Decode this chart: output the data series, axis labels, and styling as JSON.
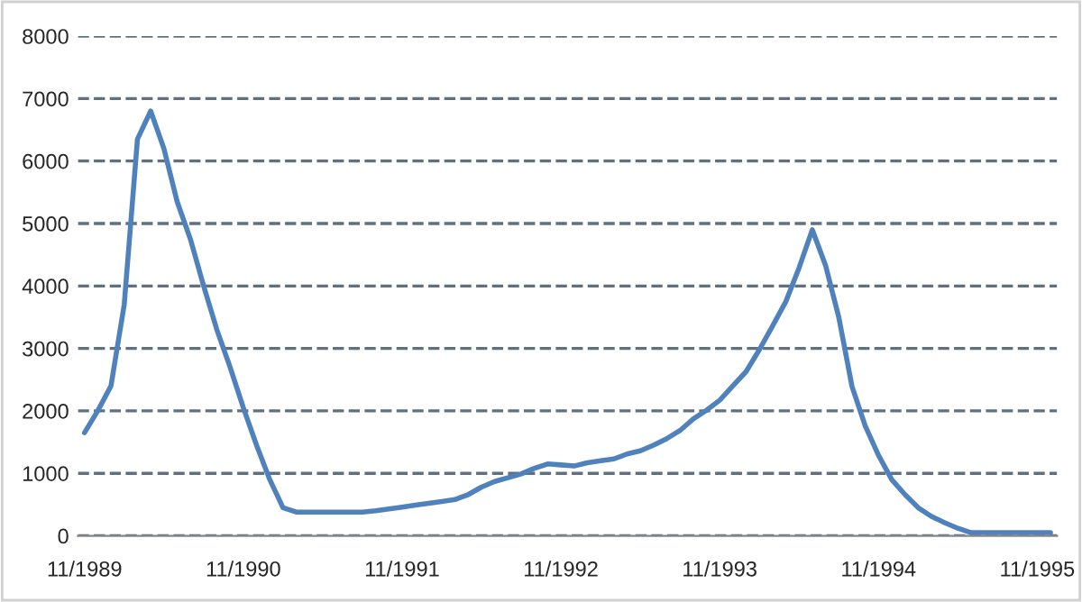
{
  "chart_data": {
    "type": "line",
    "categories": [
      "11/1989",
      null,
      null,
      null,
      null,
      null,
      null,
      null,
      null,
      null,
      null,
      null,
      "11/1990",
      null,
      null,
      null,
      null,
      null,
      null,
      null,
      null,
      null,
      null,
      null,
      "11/1991",
      null,
      null,
      null,
      null,
      null,
      null,
      null,
      null,
      null,
      null,
      null,
      "11/1992",
      null,
      null,
      null,
      null,
      null,
      null,
      null,
      null,
      null,
      null,
      null,
      "11/1993",
      null,
      null,
      null,
      null,
      null,
      null,
      null,
      null,
      null,
      null,
      null,
      "11/1994",
      null,
      null,
      null,
      null,
      null,
      null,
      null,
      null,
      null,
      null,
      null,
      "11/1995",
      null
    ],
    "series": [
      {
        "color": "#4f81bd",
        "values": [
          1650,
          2000,
          2400,
          3700,
          6350,
          6800,
          6200,
          5350,
          4750,
          4000,
          3300,
          2700,
          2050,
          1450,
          900,
          450,
          380,
          380,
          380,
          380,
          380,
          380,
          400,
          430,
          460,
          490,
          520,
          550,
          580,
          660,
          780,
          870,
          930,
          990,
          1080,
          1150,
          1135,
          1117,
          1170,
          1200,
          1230,
          1310,
          1360,
          1450,
          1555,
          1685,
          1870,
          2010,
          2170,
          2400,
          2630,
          2980,
          3360,
          3750,
          4290,
          4900,
          4330,
          3500,
          2390,
          1760,
          1290,
          900,
          660,
          450,
          310,
          210,
          120,
          50,
          50,
          50,
          50,
          50,
          50,
          50
        ]
      }
    ],
    "ylim": [
      0,
      8000
    ],
    "yticks": [
      0,
      1000,
      2000,
      3000,
      4000,
      5000,
      6000,
      7000,
      8000
    ],
    "grid": "y",
    "marker": "none",
    "line_style": "solid",
    "legend": false
  }
}
